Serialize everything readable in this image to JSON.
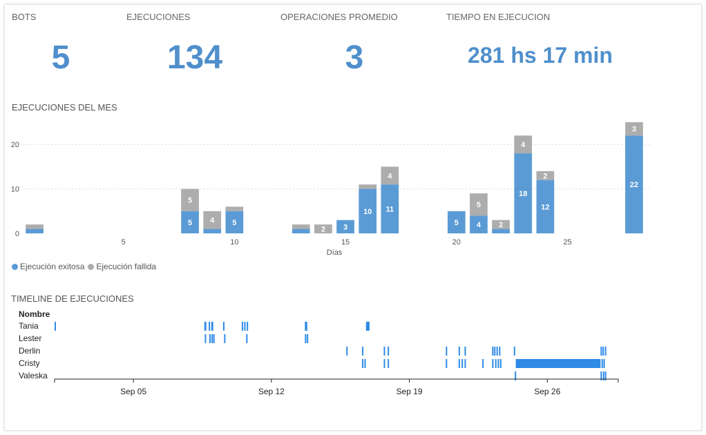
{
  "kpis": [
    {
      "label": "BOTS",
      "value": "5"
    },
    {
      "label": "EJECUCIONES",
      "value": "134"
    },
    {
      "label": "OPERACIONES PROMEDIO",
      "value": "3"
    },
    {
      "label": "TIEMPO EN EJECUCION",
      "value": "281 hs 17 min"
    }
  ],
  "sections": {
    "monthly_title": "EJECUCIONES DEL MES",
    "timeline_title": "TIMELINE DE EJECUCIONES"
  },
  "colors": {
    "success": "#5b9bd5",
    "failed": "#adadad",
    "timeline": "#2e8ae6"
  },
  "chart_data": [
    {
      "type": "bar",
      "stacked": true,
      "title": "EJECUCIONES DEL MES",
      "xlabel": "Días",
      "ylabel": "",
      "xlim": [
        0.5,
        28.5
      ],
      "ylim": [
        0,
        25
      ],
      "x_ticks": [
        5,
        10,
        15,
        20,
        25
      ],
      "y_ticks": [
        0,
        10,
        20
      ],
      "grid": true,
      "legend_position": "bottom-left",
      "x": [
        1,
        8,
        9,
        10,
        13,
        14,
        15,
        16,
        17,
        20,
        21,
        22,
        23,
        24,
        28
      ],
      "series": [
        {
          "name": "Ejecución exitosa",
          "color": "#5b9bd5",
          "values": [
            1,
            5,
            1,
            5,
            1,
            0,
            3,
            10,
            11,
            5,
            4,
            1,
            18,
            12,
            22
          ],
          "labels": [
            "",
            "5",
            "",
            "5",
            "",
            "",
            "3",
            "10",
            "11",
            "5",
            "4",
            "",
            "18",
            "12",
            "22"
          ]
        },
        {
          "name": "Ejecución fallida",
          "color": "#adadad",
          "values": [
            1,
            5,
            4,
            1,
            1,
            2,
            0,
            1,
            4,
            0,
            5,
            2,
            4,
            2,
            3
          ],
          "labels": [
            "",
            "5",
            "4",
            "",
            "",
            "2",
            "",
            "",
            "4",
            "",
            "5",
            "2",
            "4",
            "2",
            "3"
          ]
        }
      ]
    },
    {
      "type": "timeline",
      "title": "TIMELINE DE EJECUCIONES",
      "row_header": "Nombre",
      "x_ticks": [
        "Sep 05",
        "Sep 12",
        "Sep 19",
        "Sep 26"
      ],
      "x_tick_days": [
        5,
        12,
        19,
        26
      ],
      "x_range_days": [
        1,
        29.6
      ],
      "rows": [
        {
          "name": "Tania",
          "events": [
            [
              1.0,
              1.05
            ],
            [
              8.6,
              8.7
            ],
            [
              8.82,
              8.86
            ],
            [
              8.95,
              9.05
            ],
            [
              9.55,
              9.6
            ],
            [
              10.5,
              10.56
            ],
            [
              10.62,
              10.68
            ],
            [
              10.75,
              10.8
            ],
            [
              13.7,
              13.82
            ],
            [
              16.8,
              16.98
            ]
          ]
        },
        {
          "name": "Lester",
          "events": [
            [
              8.62,
              8.67
            ],
            [
              8.85,
              8.9
            ],
            [
              8.96,
              9.0
            ],
            [
              9.05,
              9.1
            ],
            [
              9.6,
              9.65
            ],
            [
              10.72,
              10.78
            ],
            [
              13.7,
              13.75
            ],
            [
              13.8,
              13.84
            ]
          ]
        },
        {
          "name": "Derlin",
          "events": [
            [
              15.8,
              15.85
            ],
            [
              16.6,
              16.66
            ],
            [
              17.7,
              17.75
            ],
            [
              17.9,
              17.95
            ],
            [
              20.85,
              20.9
            ],
            [
              21.5,
              21.55
            ],
            [
              21.8,
              21.85
            ],
            [
              23.2,
              23.25
            ],
            [
              23.3,
              23.35
            ],
            [
              23.42,
              23.47
            ],
            [
              23.55,
              23.6
            ],
            [
              24.3,
              24.36
            ],
            [
              28.7,
              28.75
            ],
            [
              28.8,
              28.85
            ],
            [
              28.92,
              28.98
            ]
          ]
        },
        {
          "name": "Cristy",
          "events": [
            [
              16.6,
              16.65
            ],
            [
              16.72,
              16.78
            ],
            [
              17.7,
              17.75
            ],
            [
              17.9,
              17.95
            ],
            [
              20.85,
              20.9
            ],
            [
              21.5,
              21.56
            ],
            [
              21.65,
              21.7
            ],
            [
              21.8,
              21.85
            ],
            [
              22.7,
              22.75
            ],
            [
              23.2,
              23.25
            ],
            [
              23.35,
              23.4
            ],
            [
              23.48,
              23.53
            ],
            [
              23.6,
              23.65
            ],
            [
              24.4,
              28.7
            ],
            [
              28.75,
              28.8
            ],
            [
              28.85,
              28.9
            ]
          ]
        },
        {
          "name": "Valeska",
          "events": [
            [
              24.35,
              24.42
            ],
            [
              28.7,
              28.75
            ],
            [
              28.82,
              28.87
            ],
            [
              28.92,
              28.97
            ]
          ]
        }
      ]
    }
  ]
}
